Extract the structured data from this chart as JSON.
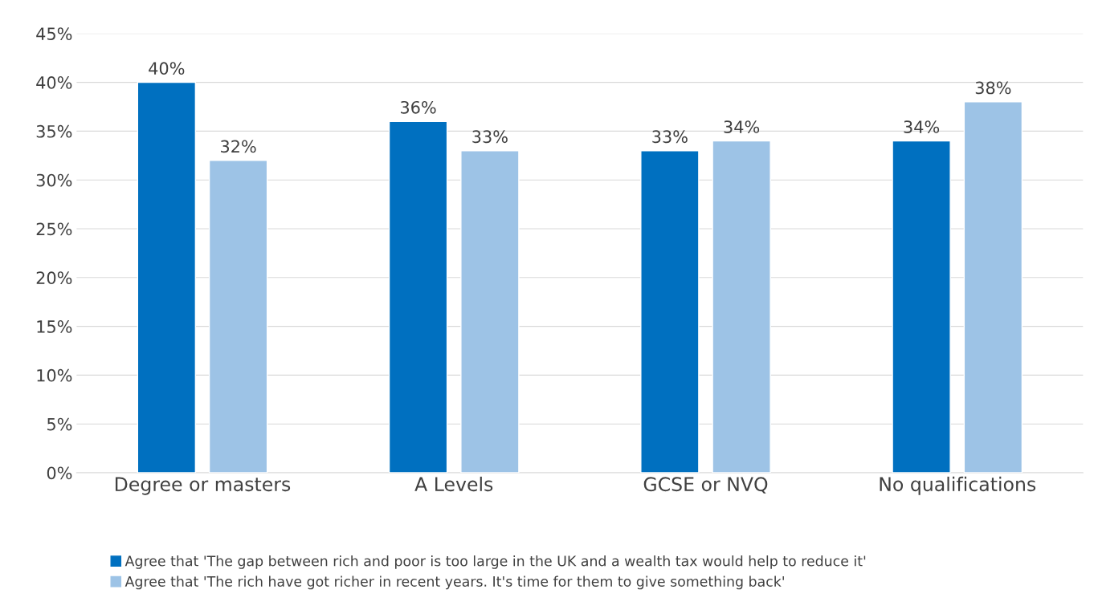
{
  "chart_data": {
    "type": "bar",
    "categories": [
      "Degree or masters",
      "A Levels",
      "GCSE or NVQ",
      "No qualifications"
    ],
    "series": [
      {
        "name": "Agree that 'The gap between rich and poor is too large in the UK and a wealth tax would help to reduce it'",
        "color": "#0070c0",
        "values": [
          40,
          36,
          33,
          34
        ],
        "value_labels": [
          "40%",
          "36%",
          "33%",
          "34%"
        ]
      },
      {
        "name": "Agree that 'The rich have got richer in recent years. It's time for them to give something back'",
        "color": "#9dc3e6",
        "values": [
          32,
          33,
          34,
          38
        ],
        "value_labels": [
          "32%",
          "33%",
          "34%",
          "38%"
        ]
      }
    ],
    "ylim": [
      0,
      45
    ],
    "yticks": [
      {
        "value": 0,
        "label": "0%"
      },
      {
        "value": 5,
        "label": "5%"
      },
      {
        "value": 10,
        "label": "10%"
      },
      {
        "value": 15,
        "label": "15%"
      },
      {
        "value": 20,
        "label": "20%"
      },
      {
        "value": 25,
        "label": "25%"
      },
      {
        "value": 30,
        "label": "30%"
      },
      {
        "value": 35,
        "label": "35%"
      },
      {
        "value": 40,
        "label": "40%"
      },
      {
        "value": 45,
        "label": "45%"
      }
    ],
    "grid": "y",
    "legend": "bottom"
  }
}
